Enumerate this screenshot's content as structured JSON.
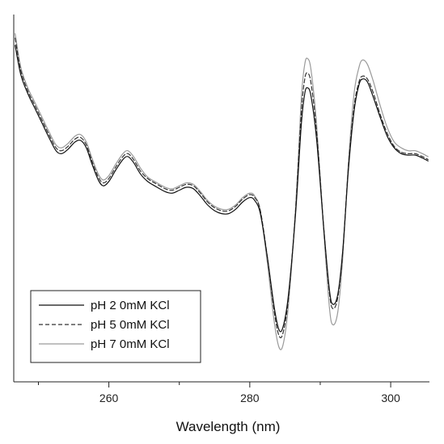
{
  "chart_data": {
    "type": "line",
    "xlabel": "Wavelength (nm)",
    "ylabel": "",
    "xlim": [
      246.5,
      305.5
    ],
    "ylim": [
      -1.05,
      1.45
    ],
    "xticks": [
      260,
      280,
      300
    ],
    "xticks_minor": [
      250,
      270,
      290
    ],
    "show_y_ticks": false,
    "grid": false,
    "legend_position": "lower-left",
    "series": [
      {
        "name": "pH 2 0mM KCl",
        "color": "#111111",
        "dash": "solid",
        "width": 1.2,
        "points": [
          [
            246.7,
            1.25
          ],
          [
            247.5,
            1.05
          ],
          [
            248.5,
            0.92
          ],
          [
            249.5,
            0.82
          ],
          [
            250.5,
            0.72
          ],
          [
            251.5,
            0.62
          ],
          [
            252.5,
            0.53
          ],
          [
            253.3,
            0.51
          ],
          [
            254.2,
            0.54
          ],
          [
            255.2,
            0.59
          ],
          [
            256.0,
            0.6
          ],
          [
            256.8,
            0.55
          ],
          [
            257.6,
            0.44
          ],
          [
            258.5,
            0.33
          ],
          [
            259.2,
            0.29
          ],
          [
            260.0,
            0.32
          ],
          [
            261.0,
            0.4
          ],
          [
            262.0,
            0.47
          ],
          [
            262.7,
            0.49
          ],
          [
            263.5,
            0.45
          ],
          [
            264.5,
            0.37
          ],
          [
            265.5,
            0.32
          ],
          [
            266.5,
            0.29
          ],
          [
            268.0,
            0.25
          ],
          [
            269.0,
            0.24
          ],
          [
            270.0,
            0.26
          ],
          [
            271.0,
            0.28
          ],
          [
            272.0,
            0.27
          ],
          [
            273.0,
            0.22
          ],
          [
            274.0,
            0.16
          ],
          [
            275.0,
            0.12
          ],
          [
            276.0,
            0.1
          ],
          [
            277.0,
            0.1
          ],
          [
            278.0,
            0.13
          ],
          [
            279.0,
            0.18
          ],
          [
            280.0,
            0.21
          ],
          [
            280.7,
            0.19
          ],
          [
            281.5,
            0.1
          ],
          [
            282.5,
            -0.2
          ],
          [
            283.5,
            -0.55
          ],
          [
            284.2,
            -0.7
          ],
          [
            284.8,
            -0.66
          ],
          [
            285.5,
            -0.45
          ],
          [
            286.5,
            0.1
          ],
          [
            287.3,
            0.7
          ],
          [
            287.8,
            0.92
          ],
          [
            288.2,
            0.96
          ],
          [
            288.7,
            0.9
          ],
          [
            289.5,
            0.6
          ],
          [
            290.5,
            0.0
          ],
          [
            291.3,
            -0.42
          ],
          [
            291.8,
            -0.52
          ],
          [
            292.5,
            -0.45
          ],
          [
            293.2,
            -0.15
          ],
          [
            294.0,
            0.4
          ],
          [
            294.8,
            0.8
          ],
          [
            295.5,
            0.98
          ],
          [
            296.0,
            1.02
          ],
          [
            296.7,
            1.0
          ],
          [
            297.5,
            0.9
          ],
          [
            298.5,
            0.76
          ],
          [
            299.5,
            0.63
          ],
          [
            300.5,
            0.55
          ],
          [
            301.5,
            0.51
          ],
          [
            302.5,
            0.5
          ],
          [
            303.5,
            0.5
          ],
          [
            304.5,
            0.48
          ],
          [
            305.3,
            0.46
          ]
        ]
      },
      {
        "name": "pH 5 0mM KCl",
        "color": "#333333",
        "dash": "dashed",
        "width": 1.2,
        "points": [
          [
            246.7,
            1.3
          ],
          [
            247.5,
            1.08
          ],
          [
            248.5,
            0.94
          ],
          [
            249.5,
            0.84
          ],
          [
            250.5,
            0.74
          ],
          [
            251.5,
            0.64
          ],
          [
            252.5,
            0.55
          ],
          [
            253.3,
            0.53
          ],
          [
            254.2,
            0.56
          ],
          [
            255.2,
            0.61
          ],
          [
            256.0,
            0.62
          ],
          [
            256.8,
            0.57
          ],
          [
            257.6,
            0.46
          ],
          [
            258.5,
            0.35
          ],
          [
            259.2,
            0.31
          ],
          [
            260.0,
            0.34
          ],
          [
            261.0,
            0.42
          ],
          [
            262.0,
            0.49
          ],
          [
            262.7,
            0.51
          ],
          [
            263.5,
            0.47
          ],
          [
            264.5,
            0.39
          ],
          [
            265.5,
            0.34
          ],
          [
            266.5,
            0.31
          ],
          [
            268.0,
            0.27
          ],
          [
            269.0,
            0.26
          ],
          [
            270.0,
            0.28
          ],
          [
            271.0,
            0.3
          ],
          [
            272.0,
            0.29
          ],
          [
            273.0,
            0.24
          ],
          [
            274.0,
            0.18
          ],
          [
            275.0,
            0.14
          ],
          [
            276.0,
            0.12
          ],
          [
            277.0,
            0.12
          ],
          [
            278.0,
            0.15
          ],
          [
            279.0,
            0.2
          ],
          [
            280.0,
            0.23
          ],
          [
            280.7,
            0.21
          ],
          [
            281.5,
            0.12
          ],
          [
            282.5,
            -0.2
          ],
          [
            283.5,
            -0.58
          ],
          [
            284.2,
            -0.74
          ],
          [
            284.8,
            -0.7
          ],
          [
            285.5,
            -0.47
          ],
          [
            286.5,
            0.12
          ],
          [
            287.3,
            0.78
          ],
          [
            287.8,
            1.02
          ],
          [
            288.2,
            1.06
          ],
          [
            288.7,
            0.99
          ],
          [
            289.5,
            0.65
          ],
          [
            290.5,
            0.0
          ],
          [
            291.3,
            -0.44
          ],
          [
            291.8,
            -0.55
          ],
          [
            292.5,
            -0.47
          ],
          [
            293.2,
            -0.16
          ],
          [
            294.0,
            0.42
          ],
          [
            294.8,
            0.83
          ],
          [
            295.5,
            1.0
          ],
          [
            296.0,
            1.04
          ],
          [
            296.7,
            1.02
          ],
          [
            297.5,
            0.93
          ],
          [
            298.5,
            0.78
          ],
          [
            299.5,
            0.65
          ],
          [
            300.5,
            0.56
          ],
          [
            301.5,
            0.52
          ],
          [
            302.5,
            0.51
          ],
          [
            303.5,
            0.51
          ],
          [
            304.5,
            0.49
          ],
          [
            305.3,
            0.47
          ]
        ]
      },
      {
        "name": "pH 7 0mM KCl",
        "color": "#9a9a9a",
        "dash": "solid",
        "width": 1.2,
        "points": [
          [
            246.7,
            1.33
          ],
          [
            247.5,
            1.1
          ],
          [
            248.5,
            0.96
          ],
          [
            249.5,
            0.86
          ],
          [
            250.5,
            0.76
          ],
          [
            251.5,
            0.66
          ],
          [
            252.5,
            0.57
          ],
          [
            253.3,
            0.55
          ],
          [
            254.2,
            0.58
          ],
          [
            255.2,
            0.63
          ],
          [
            256.0,
            0.64
          ],
          [
            256.8,
            0.59
          ],
          [
            257.6,
            0.48
          ],
          [
            258.5,
            0.37
          ],
          [
            259.2,
            0.33
          ],
          [
            260.0,
            0.36
          ],
          [
            261.0,
            0.44
          ],
          [
            262.0,
            0.51
          ],
          [
            262.7,
            0.53
          ],
          [
            263.5,
            0.49
          ],
          [
            264.5,
            0.41
          ],
          [
            265.5,
            0.35
          ],
          [
            266.5,
            0.32
          ],
          [
            268.0,
            0.28
          ],
          [
            269.0,
            0.27
          ],
          [
            270.0,
            0.29
          ],
          [
            271.0,
            0.31
          ],
          [
            272.0,
            0.3
          ],
          [
            273.0,
            0.25
          ],
          [
            274.0,
            0.19
          ],
          [
            275.0,
            0.15
          ],
          [
            276.0,
            0.13
          ],
          [
            277.0,
            0.13
          ],
          [
            278.0,
            0.16
          ],
          [
            279.0,
            0.21
          ],
          [
            280.0,
            0.24
          ],
          [
            280.7,
            0.22
          ],
          [
            281.5,
            0.12
          ],
          [
            282.5,
            -0.24
          ],
          [
            283.5,
            -0.65
          ],
          [
            284.2,
            -0.82
          ],
          [
            284.8,
            -0.78
          ],
          [
            285.5,
            -0.52
          ],
          [
            286.5,
            0.14
          ],
          [
            287.3,
            0.88
          ],
          [
            287.8,
            1.12
          ],
          [
            288.2,
            1.16
          ],
          [
            288.7,
            1.08
          ],
          [
            289.5,
            0.7
          ],
          [
            290.5,
            -0.02
          ],
          [
            291.3,
            -0.54
          ],
          [
            291.8,
            -0.66
          ],
          [
            292.5,
            -0.57
          ],
          [
            293.2,
            -0.2
          ],
          [
            294.0,
            0.45
          ],
          [
            294.8,
            0.92
          ],
          [
            295.5,
            1.1
          ],
          [
            296.0,
            1.15
          ],
          [
            296.7,
            1.12
          ],
          [
            297.5,
            1.01
          ],
          [
            298.5,
            0.84
          ],
          [
            299.5,
            0.69
          ],
          [
            300.5,
            0.59
          ],
          [
            301.5,
            0.55
          ],
          [
            302.5,
            0.53
          ],
          [
            303.5,
            0.53
          ],
          [
            304.5,
            0.51
          ],
          [
            305.3,
            0.49
          ]
        ]
      }
    ]
  }
}
